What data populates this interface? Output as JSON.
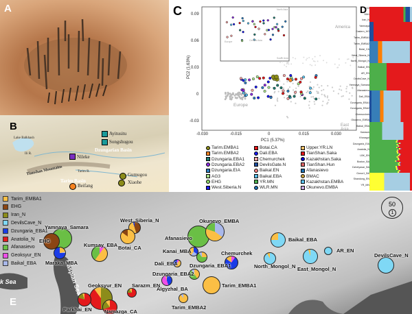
{
  "panels": {
    "a": "A",
    "b": "B",
    "c": "C",
    "d": "D",
    "e": "E"
  },
  "panel_b": {
    "places": [
      "Ayitusitu",
      "Songshugou",
      "Nileke",
      "Gumugou",
      "Xiaohe",
      "Beifang"
    ],
    "features": [
      "Lake Balkhash",
      "Ili R.",
      "Dzungarian Basin",
      "Tianshan Mountains",
      "Tarim R.",
      "Tarim Basin"
    ]
  },
  "panel_c": {
    "xlabel": "PC1 (5.37%)",
    "ylabel": "PC2 (1.63%)",
    "xticks": [
      "-0.030",
      "-0.015",
      "0",
      "0.015",
      "0.030"
    ],
    "yticks": [
      "0.09",
      "0.06",
      "0.03",
      "0",
      "-0.03"
    ],
    "regions": [
      "Europe",
      "East Asia",
      "America",
      "Europe",
      "Central Asia",
      "North Asia",
      "South Asia"
    ],
    "legend": [
      {
        "label": "Tarim.EMBA1",
        "color": "#8c8c1a"
      },
      {
        "label": "Tarim.EMBA2",
        "color": "#f58220"
      },
      {
        "label": "Dzungaria.EBA1",
        "color": "#1f7a6e"
      },
      {
        "label": "Dzungaria.EBA2",
        "color": "#8a2be2"
      },
      {
        "label": "Dzungaria.EIA",
        "color": "#2f7fc1"
      },
      {
        "label": "AG3",
        "color": "#a8e08a"
      },
      {
        "label": "EHG",
        "color": "#8fd66a"
      },
      {
        "label": "West.Siberia.N",
        "color": "#1a1aee"
      },
      {
        "label": "Botai.CA",
        "color": "#e41a1c"
      },
      {
        "label": "Dali.EBA",
        "color": "#1a1aee"
      },
      {
        "label": "Chemurchek",
        "color": "#f4a3a3"
      },
      {
        "label": "DevilsGate.N",
        "color": "#1f4fa0"
      },
      {
        "label": "Baikal.EN",
        "color": "#f08080"
      },
      {
        "label": "Baikal.EBA",
        "color": "#5bc0eb"
      },
      {
        "label": "YR.MN",
        "color": "#4caf50"
      },
      {
        "label": "WLR.MN",
        "color": "#1f6fb0"
      },
      {
        "label": "Upper.YR.LN",
        "color": "#f6c26b"
      },
      {
        "label": "TianShan.Saka",
        "color": "#e41a1c"
      },
      {
        "label": "Kazakhstan.Saka",
        "color": "#0000cc"
      },
      {
        "label": "TianShan.Hun",
        "color": "#d66"
      },
      {
        "label": "Afanasievo",
        "color": "#1f6fb0"
      },
      {
        "label": "BMAC",
        "color": "#c8a040"
      },
      {
        "label": "Kazakhstan.EMBA",
        "color": "#5bc0eb"
      },
      {
        "label": "Okunevo.EMBA",
        "color": "#c9a9e0"
      }
    ]
  },
  "panel_d": {
    "labels": [
      "AG3",
      "MA1",
      "Iran_N",
      "Yamnaya",
      "Eastern_HG",
      "Tarim_EMBA1",
      "Tarim_EMBA2",
      "Botai_CA",
      "West_Siberia_N",
      "North_Mongol_N",
      "Baikal_EN",
      "AR_EN",
      "DevilsCave_N",
      "Yamnaya_Samara",
      "Afanasievo",
      "Dali_EBA",
      "Dzungaria_EBA1",
      "Dzungaria_EBA2",
      "Chemurchek",
      "Okunevo_EMBA",
      "Baikal_EBA",
      "Karasuk",
      "Khovsgol",
      "Dzungaria_EIA",
      "Anatolia_N",
      "LBK_EN",
      "Boston_BA",
      "Dzhetyasar_BA",
      "Gonur1_BA",
      "Shandong_EN",
      "YR_MN"
    ]
  },
  "panel_e": {
    "legend": [
      {
        "label": "Tarim_EMBA1",
        "color": "#fbbf45"
      },
      {
        "label": "EHG",
        "color": "#8b4513"
      },
      {
        "label": "Iran_N",
        "color": "#8c8c1a"
      },
      {
        "label": "DevilsCave_N",
        "color": "#7fd8f5"
      },
      {
        "label": "Dzungaria_EBA1",
        "color": "#1a3ce6"
      },
      {
        "label": "Anatolia_N",
        "color": "#e41a1c"
      },
      {
        "label": "Afanasievo",
        "color": "#6abf45"
      },
      {
        "label": "Geoksyur_EN",
        "color": "#ee4fe8"
      },
      {
        "label": "Baikal_EBA",
        "color": "#a9b8ea"
      }
    ],
    "seas": [
      "k Sea",
      "Caspian Sea"
    ],
    "scale": {
      "large": "50",
      "small": "1"
    },
    "pies": [
      {
        "label": "Yamnaya_Samara",
        "parts": [
          [
            "#6abf45",
            1.0
          ]
        ]
      },
      {
        "label": "EHG",
        "parts": [
          [
            "#8b4513",
            1.0
          ]
        ]
      },
      {
        "label": "Maraka_MBA",
        "parts": [
          [
            "#fbbf45",
            0.22
          ],
          [
            "#a9b8ea",
            0.03
          ],
          [
            "#1a3ce6",
            0.75
          ]
        ]
      },
      {
        "label": "Kumsay_EBA",
        "parts": [
          [
            "#ee4fe8",
            0.1
          ],
          [
            "#fbbf45",
            0.5
          ],
          [
            "#6abf45",
            0.4
          ]
        ]
      },
      {
        "label": "West_Siberia_N",
        "parts": [
          [
            "#8b4513",
            0.45
          ],
          [
            "#fbbf45",
            0.5
          ],
          [
            "#1a3ce6",
            0.05
          ]
        ]
      },
      {
        "label": "Botai_CA",
        "parts": [
          [
            "#fbbf45",
            0.85
          ],
          [
            "#8b4513",
            0.15
          ]
        ]
      },
      {
        "label": "Afanasievo",
        "parts": [
          [
            "#6abf45",
            1.0
          ]
        ]
      },
      {
        "label": "Okunevo_EMBA",
        "parts": [
          [
            "#a9b8ea",
            0.35
          ],
          [
            "#fbbf45",
            0.45
          ],
          [
            "#6abf45",
            0.2
          ]
        ]
      },
      {
        "label": "Baikal_EBA",
        "parts": [
          [
            "#7fd8f5",
            0.75
          ],
          [
            "#fbbf45",
            0.25
          ]
        ]
      },
      {
        "label": "Kanai_MBA",
        "parts": [
          [
            "#1a3ce6",
            0.35
          ],
          [
            "#a9b8ea",
            0.25
          ],
          [
            "#fbbf45",
            0.4
          ]
        ]
      },
      {
        "label": "Dzungaria_EBA1",
        "parts": [
          [
            "#fbbf45",
            0.25
          ],
          [
            "#6abf45",
            0.65
          ],
          [
            "#a9b8ea",
            0.1
          ]
        ]
      },
      {
        "label": "Chemurchek",
        "parts": [
          [
            "#ee4fe8",
            0.1
          ],
          [
            "#1a3ce6",
            0.75
          ],
          [
            "#fbbf45",
            0.15
          ]
        ]
      },
      {
        "label": "Dali_EBA",
        "parts": [
          [
            "#ee4fe8",
            0.1
          ],
          [
            "#fbbf45",
            0.5
          ],
          [
            "#1a3ce6",
            0.4
          ]
        ]
      },
      {
        "label": "Dzungaria_EBA2",
        "parts": [
          [
            "#fbbf45",
            0.4
          ],
          [
            "#6abf45",
            0.5
          ],
          [
            "#a9b8ea",
            0.1
          ]
        ]
      },
      {
        "label": "Algyzhal_BA",
        "parts": [
          [
            "#1a3ce6",
            0.45
          ],
          [
            "#ee4fe8",
            0.5
          ],
          [
            "#fbbf45",
            0.05
          ]
        ]
      },
      {
        "label": "Sarazm_EN",
        "parts": [
          [
            "#e41a1c",
            0.75
          ],
          [
            "#8c8c1a",
            0.15
          ],
          [
            "#fbbf45",
            0.1
          ]
        ]
      },
      {
        "label": "Tarim_EMBA1",
        "parts": [
          [
            "#fbbf45",
            1.0
          ]
        ]
      },
      {
        "label": "Tarim_EMBA2",
        "parts": [
          [
            "#fbbf45",
            0.9
          ],
          [
            "#a9b8ea",
            0.1
          ]
        ]
      },
      {
        "label": "North_Mongol_N",
        "parts": [
          [
            "#7fd8f5",
            0.92
          ],
          [
            "#fbbf45",
            0.08
          ]
        ]
      },
      {
        "label": "East_Mongol_N",
        "parts": [
          [
            "#7fd8f5",
            0.95
          ],
          [
            "#fbbf45",
            0.05
          ]
        ]
      },
      {
        "label": "AR_EN",
        "parts": [
          [
            "#7fd8f5",
            1.0
          ]
        ]
      },
      {
        "label": "DevilsCave_N",
        "parts": [
          [
            "#7fd8f5",
            1.0
          ]
        ]
      },
      {
        "label": "Geoksyur_EN",
        "parts": [
          [
            "#8c8c1a",
            0.5
          ],
          [
            "#e41a1c",
            0.4
          ],
          [
            "#fbbf45",
            0.1
          ]
        ]
      },
      {
        "label": "Namazga_CA",
        "parts": [
          [
            "#e41a1c",
            0.7
          ],
          [
            "#8c8c1a",
            0.2
          ],
          [
            "#fbbf45",
            0.1
          ]
        ]
      },
      {
        "label": "Parkhai_EN",
        "parts": [
          [
            "#e41a1c",
            0.8
          ],
          [
            "#8c8c1a",
            0.15
          ],
          [
            "#fbbf45",
            0.05
          ]
        ]
      }
    ]
  }
}
